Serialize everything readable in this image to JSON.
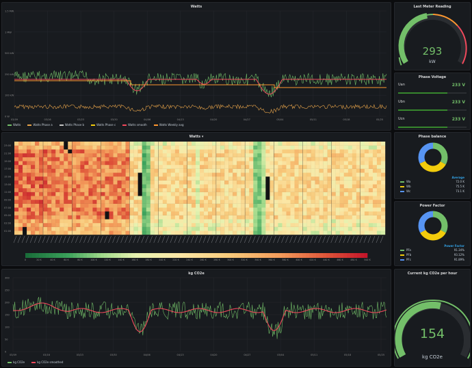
{
  "panels": {
    "watts_ts": {
      "title": "Watts",
      "y_ticks": [
        "1.5 MW",
        "1 MW",
        "500 kW",
        "250 kW",
        "100 kW",
        "0 W"
      ],
      "x_ticks": [
        "03/09",
        "03/16",
        "03/23",
        "03/30",
        "04/06",
        "04/13",
        "04/20",
        "04/27",
        "05/04",
        "05/11",
        "05/18",
        "05/25"
      ],
      "legend": [
        {
          "label": "Watts",
          "color": "#73bf69"
        },
        {
          "label": "Watts Phase a",
          "color": "#e8a44a"
        },
        {
          "label": "Watts Phase b",
          "color": "#c4c4c4"
        },
        {
          "label": "Watts Phase c",
          "color": "#f2cc0c"
        },
        {
          "label": "Watts smooth",
          "color": "#f2495c"
        },
        {
          "label": "Watts Weekly avg",
          "color": "#ff9830"
        }
      ]
    },
    "heatmap": {
      "title": "Watts",
      "y_ticks": [
        "23:00",
        "21:00",
        "19:00",
        "17:00",
        "15:00",
        "13:00",
        "11:00",
        "09:00",
        "07:00",
        "05:00",
        "03:00",
        "01:00"
      ],
      "scale_labels": [
        "0",
        "20 K",
        "40 K",
        "60 K",
        "80 K",
        "100 K",
        "120 K",
        "140 K",
        "160 K",
        "180 K",
        "200 K",
        "220 K",
        "240 K",
        "260 K",
        "280 K",
        "300 K",
        "320 K",
        "340 K",
        "360 K",
        "380 K",
        "400 K",
        "420 K",
        "440 K",
        "460 K",
        "480 K",
        "500 K"
      ]
    },
    "co2_ts": {
      "title": "kg CO2e",
      "y_ticks": [
        "300",
        "250",
        "200",
        "150",
        "100",
        "50",
        "0"
      ],
      "x_ticks": [
        "03/09",
        "03/16",
        "03/23",
        "03/30",
        "04/06",
        "04/13",
        "04/20",
        "04/27",
        "05/04",
        "05/11",
        "05/18",
        "05/25"
      ],
      "legend": [
        {
          "label": "kg CO2e",
          "color": "#73bf69"
        },
        {
          "label": "kg CO2e smoothed",
          "color": "#f2495c"
        }
      ]
    },
    "meter": {
      "title": "Last Meter Reading",
      "value": "293",
      "unit": "kW"
    },
    "phase_voltage": {
      "title": "Phase Voltage",
      "rows": [
        {
          "label": "Uan",
          "value": "233 V",
          "fill": 0.72
        },
        {
          "label": "Ubn",
          "value": "233 V",
          "fill": 0.72
        },
        {
          "label": "Ucn",
          "value": "233 V",
          "fill": 0.72
        }
      ]
    },
    "phase_balance": {
      "title": "Phase balance",
      "header": "Average",
      "rows": [
        {
          "label": "Wa",
          "value": "72.0 K",
          "color": "#73bf69"
        },
        {
          "label": "Wb",
          "value": "75.5 K",
          "color": "#f2cc0c"
        },
        {
          "label": "Wc",
          "value": "73.1 K",
          "color": "#5794f2"
        }
      ]
    },
    "power_factor": {
      "title": "Power Factor",
      "header": "Power Factor",
      "rows": [
        {
          "label": "PFa",
          "value": "91.34%",
          "color": "#73bf69"
        },
        {
          "label": "PFb",
          "value": "93.12%",
          "color": "#f2cc0c"
        },
        {
          "label": "PFc",
          "value": "91.89%",
          "color": "#5794f2"
        }
      ]
    },
    "co2_gauge": {
      "title": "Current kg CO2e per hour",
      "value": "154",
      "unit": "kg CO2e"
    }
  },
  "colors": {
    "green": "#73bf69",
    "red": "#f2495c",
    "orange": "#ff9830",
    "yellow": "#f2cc0c",
    "blue": "#33a2e5",
    "panel": "#181b1f"
  }
}
